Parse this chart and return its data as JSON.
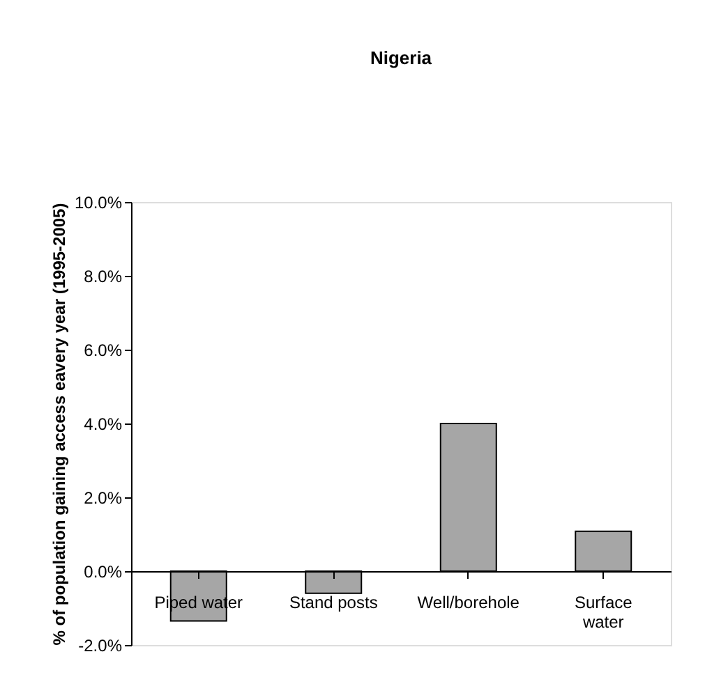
{
  "chart_data": {
    "type": "bar",
    "title": "Nigeria",
    "ylabel": "% of population gaining access eavery year (1995-2005)",
    "categories": [
      "Piped water",
      "Stand posts",
      "Well/borehole",
      "Surface water"
    ],
    "values": [
      -1.35,
      -0.6,
      4.0,
      1.08
    ],
    "color": "#a6a6a6",
    "ylim": [
      -2,
      10
    ],
    "yticks": [
      {
        "value": -2,
        "label": "-2.0%"
      },
      {
        "value": 0,
        "label": "0.0%"
      },
      {
        "value": 2,
        "label": "2.0%"
      },
      {
        "value": 4,
        "label": "4.0%"
      },
      {
        "value": 6,
        "label": "6.0%"
      },
      {
        "value": 8,
        "label": "8.0%"
      },
      {
        "value": 10,
        "label": "10.0%"
      }
    ]
  }
}
